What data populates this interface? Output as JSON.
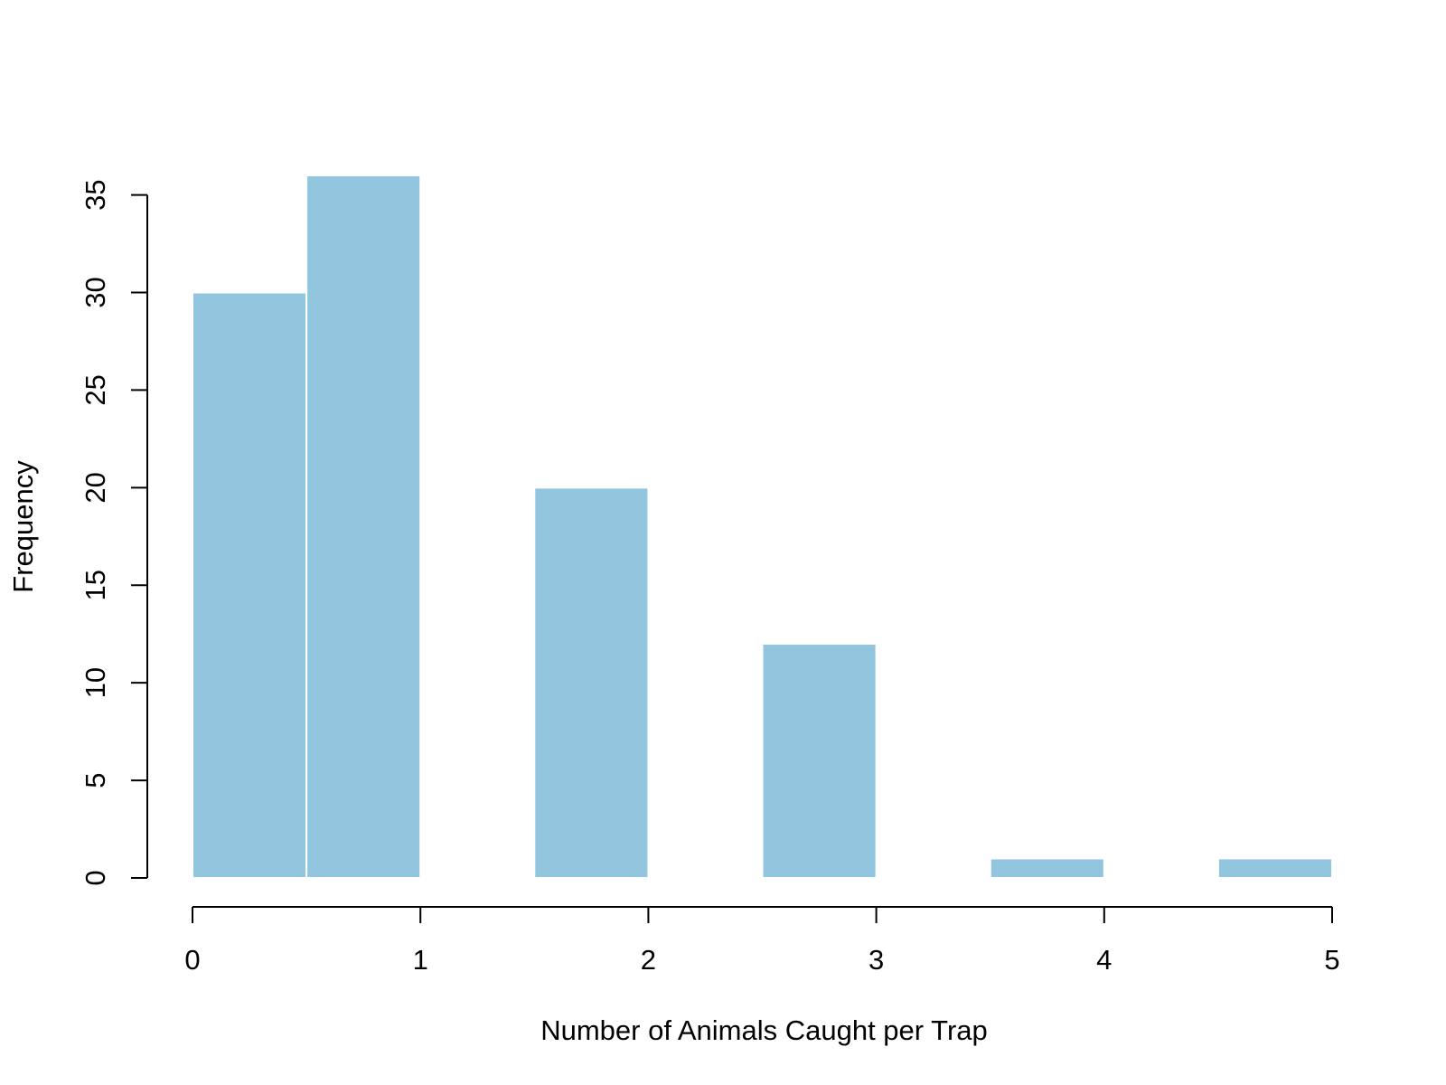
{
  "chart_data": {
    "type": "bar",
    "title": "",
    "xlabel": "Number of Animals Caught per Trap",
    "ylabel": "Frequency",
    "bins": [
      {
        "x0": 0,
        "x1": 0.5,
        "value": 30
      },
      {
        "x0": 0.5,
        "x1": 1,
        "value": 36
      },
      {
        "x0": 1,
        "x1": 1.5,
        "value": 0
      },
      {
        "x0": 1.5,
        "x1": 2,
        "value": 20
      },
      {
        "x0": 2,
        "x1": 2.5,
        "value": 0
      },
      {
        "x0": 2.5,
        "x1": 3,
        "value": 12
      },
      {
        "x0": 3,
        "x1": 3.5,
        "value": 0
      },
      {
        "x0": 3.5,
        "x1": 4,
        "value": 1
      },
      {
        "x0": 4,
        "x1": 4.5,
        "value": 0
      },
      {
        "x0": 4.5,
        "x1": 5,
        "value": 1
      }
    ],
    "xlim": [
      0,
      5
    ],
    "ylim": [
      0,
      36
    ],
    "x_ticks": [
      "0",
      "1",
      "2",
      "3",
      "4",
      "5"
    ],
    "y_ticks": [
      "0",
      "5",
      "10",
      "15",
      "20",
      "25",
      "30",
      "35"
    ],
    "bar_color": "#92c5de",
    "grid": false,
    "legend": false
  }
}
